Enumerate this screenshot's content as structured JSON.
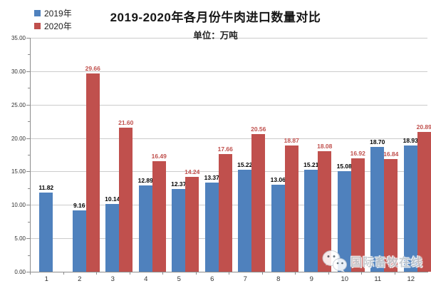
{
  "header": {
    "title": "2019-2020年各月份牛肉进口数量对比",
    "subtitle": "单位：万吨"
  },
  "legend": {
    "items": [
      {
        "label": "2019年",
        "color": "#4F81BD"
      },
      {
        "label": "2020年",
        "color": "#C0504D"
      }
    ]
  },
  "watermark": {
    "icon": "wechat-icon",
    "text": "国际畜牧在线"
  },
  "chart_data": {
    "type": "bar",
    "title": "2019-2020年各月份牛肉进口数量对比",
    "subtitle": "单位：万吨",
    "unit": "万吨",
    "categories": [
      "1",
      "2",
      "3",
      "4",
      "5",
      "6",
      "7",
      "8",
      "9",
      "10",
      "11",
      "12"
    ],
    "series": [
      {
        "name": "2019年",
        "color": "#4F81BD",
        "label_color": "#000000",
        "values": [
          11.82,
          9.16,
          10.14,
          12.89,
          12.37,
          13.37,
          15.22,
          13.06,
          15.21,
          15.08,
          18.7,
          18.93
        ],
        "labels": [
          "11.82",
          "9.16",
          "10.14",
          "12.89",
          "12.37",
          "13.37",
          "15.22",
          "13.06",
          "15.21",
          "15.08",
          "18.70",
          "18.93"
        ]
      },
      {
        "name": "2020年",
        "color": "#C0504D",
        "label_color": "#C0504D",
        "values": [
          null,
          29.66,
          21.6,
          16.49,
          14.24,
          17.66,
          20.56,
          18.87,
          18.08,
          16.92,
          16.84,
          20.89
        ],
        "labels": [
          "",
          "29.66",
          "21.60",
          "16.49",
          "14.24",
          "17.66",
          "20.56",
          "18.87",
          "18.08",
          "16.92",
          "16.84",
          "20.89"
        ]
      }
    ],
    "ylim": [
      0,
      35
    ],
    "ytick_step": 5,
    "ytick_minor_step": 2.5,
    "ytick_labels": [
      "0.00",
      "5.00",
      "10.00",
      "15.00",
      "20.00",
      "25.00",
      "30.00",
      "35.00"
    ],
    "grid": true,
    "legend_position": "top-left",
    "colors": {
      "grid": "#cccccc",
      "axis": "#8c8c8c"
    }
  }
}
